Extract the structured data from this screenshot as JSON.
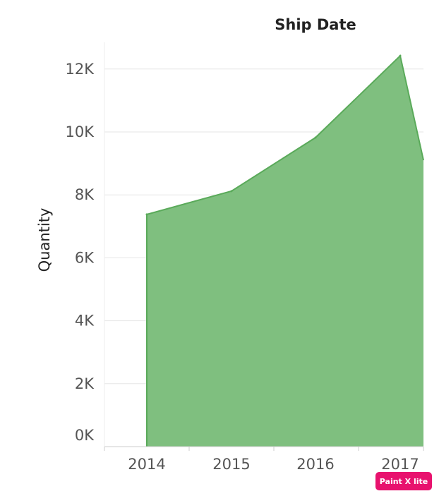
{
  "chart_data": {
    "type": "area",
    "title": "Ship Date",
    "xlabel": "",
    "ylabel": "Quantity",
    "x": [
      "2014",
      "2015",
      "2016",
      "2017"
    ],
    "values": [
      7380,
      8120,
      9820,
      12420
    ],
    "truncated_next_value": 9100,
    "y_ticks": [
      "0K",
      "2K",
      "4K",
      "6K",
      "8K",
      "10K",
      "12K"
    ],
    "ylim": [
      0,
      13000
    ],
    "grid": "horizontal",
    "fill_color": "#7fbf7f",
    "line_color": "#5aaa5a"
  },
  "watermark": {
    "text": "Paint X lite",
    "color": "#e8126e"
  }
}
